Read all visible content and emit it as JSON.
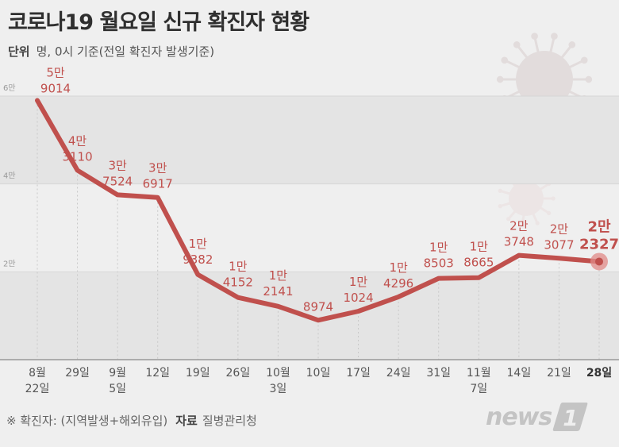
{
  "title": "코로나19 월요일 신규 확진자 현황",
  "unit": {
    "label": "단위",
    "text": "명, 0시 기준(전일 확진자 발생기준)"
  },
  "footer": {
    "note": "※ 확진자: (지역발생+해외유입)",
    "source_label": "자료",
    "source": "질병관리청"
  },
  "logo": {
    "text": "news",
    "badge": "1"
  },
  "colors": {
    "line": "#c0504d",
    "label": "#c0504d",
    "band": "#e4e4e4",
    "highlight": "#e08a87"
  },
  "chart_data": {
    "type": "line",
    "title": "코로나19 월요일 신규 확진자 현황",
    "xlabel": "",
    "ylabel": "명",
    "ylim": [
      0,
      60000
    ],
    "y_ticks": [
      {
        "value": 20000,
        "label": "2만"
      },
      {
        "value": 40000,
        "label": "4만"
      },
      {
        "value": 60000,
        "label": "6만"
      }
    ],
    "x_labels": [
      [
        "8월",
        "22일"
      ],
      [
        "29일"
      ],
      [
        "9월",
        "5일"
      ],
      [
        "12일"
      ],
      [
        "19일"
      ],
      [
        "26일"
      ],
      [
        "10월",
        "3일"
      ],
      [
        "10일"
      ],
      [
        "17일"
      ],
      [
        "24일"
      ],
      [
        "31일"
      ],
      [
        "11월",
        "7일"
      ],
      [
        "14일"
      ],
      [
        "21일"
      ],
      [
        "28일"
      ]
    ],
    "values": [
      59014,
      43110,
      37524,
      36917,
      19382,
      14152,
      12141,
      8974,
      11024,
      14296,
      18503,
      18665,
      23748,
      23077,
      22327
    ],
    "data_labels": [
      [
        "5만",
        "9014"
      ],
      [
        "4만",
        "3110"
      ],
      [
        "3만",
        "7524"
      ],
      [
        "3만",
        "6917"
      ],
      [
        "1만",
        "9382"
      ],
      [
        "1만",
        "4152"
      ],
      [
        "1만",
        "2141"
      ],
      [
        "8974"
      ],
      [
        "1만",
        "1024"
      ],
      [
        "1만",
        "4296"
      ],
      [
        "1만",
        "8503"
      ],
      [
        "1만",
        "8665"
      ],
      [
        "2만",
        "3748"
      ],
      [
        "2만",
        "3077"
      ],
      [
        "2만",
        "2327"
      ]
    ],
    "highlight_index": 14
  }
}
